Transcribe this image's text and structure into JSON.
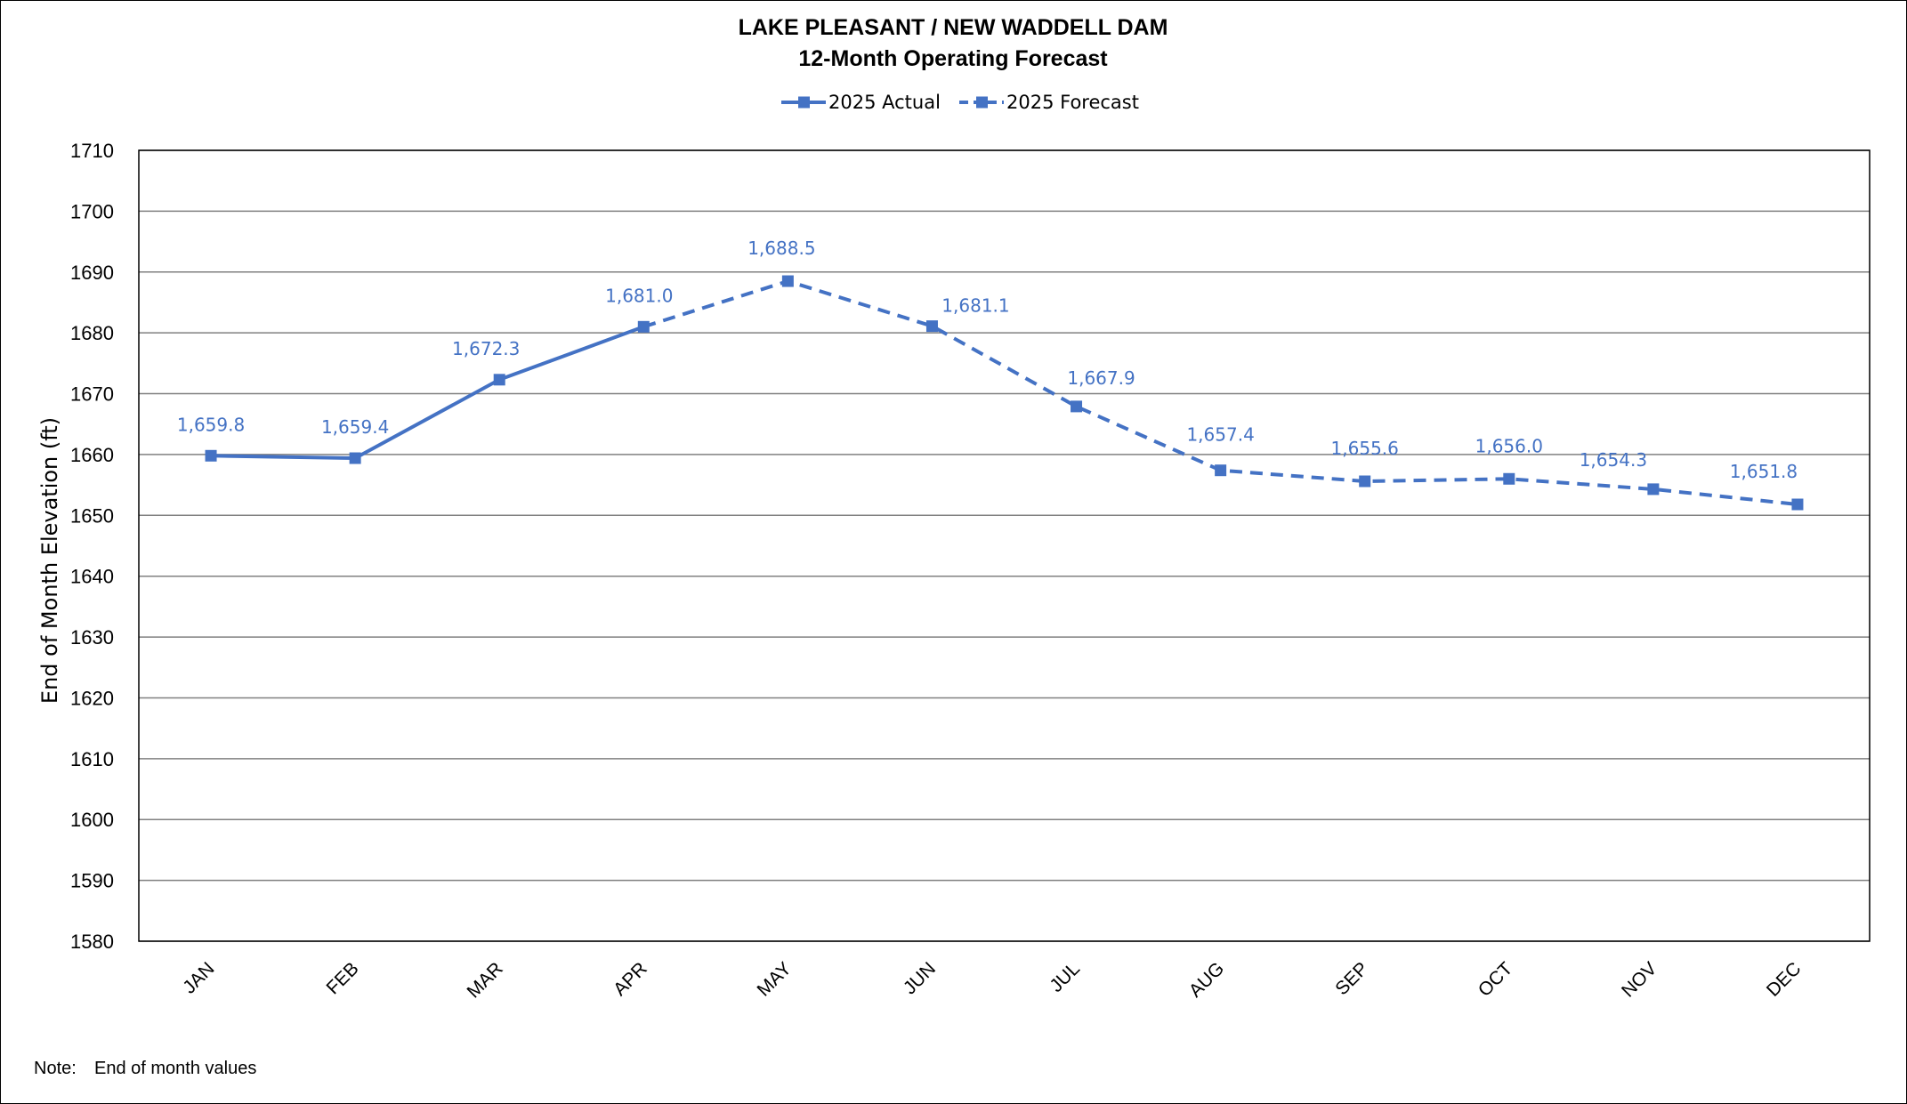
{
  "chart_data": {
    "type": "line",
    "title": "LAKE PLEASANT / NEW WADDELL DAM",
    "subtitle": "12-Month Operating Forecast",
    "ylabel": "End of Month Elevation (ft)",
    "xlabel": "",
    "categories": [
      "JAN",
      "FEB",
      "MAR",
      "APR",
      "MAY",
      "JUN",
      "JUL",
      "AUG",
      "SEP",
      "OCT",
      "NOV",
      "DEC"
    ],
    "ylim": [
      1580,
      1710
    ],
    "yticks": [
      "1580",
      "1590",
      "1600",
      "1610",
      "1620",
      "1630",
      "1640",
      "1650",
      "1660",
      "1670",
      "1680",
      "1690",
      "1700",
      "1710"
    ],
    "grid": true,
    "legend_position": "top",
    "series": [
      {
        "name": "2025 Actual",
        "style": "solid",
        "color": "#4472c4",
        "values": [
          1659.8,
          1659.4,
          1672.3,
          1681.0,
          null,
          null,
          null,
          null,
          null,
          null,
          null,
          null
        ]
      },
      {
        "name": "2025 Forecast",
        "style": "dashed",
        "color": "#4472c4",
        "values": [
          null,
          null,
          null,
          1681.0,
          1688.5,
          1681.1,
          1667.9,
          1657.4,
          1655.6,
          1656.0,
          1654.3,
          1651.8
        ]
      }
    ],
    "data_labels": [
      "1,659.8",
      "1,659.4",
      "1,672.3",
      "1,681.0",
      "1,688.5",
      "1,681.1",
      "1,667.9",
      "1,657.4",
      "1,655.6",
      "1,656.0",
      "1,654.3",
      "1,651.8"
    ],
    "note_label": "Note:",
    "note_text": "End of month values"
  }
}
